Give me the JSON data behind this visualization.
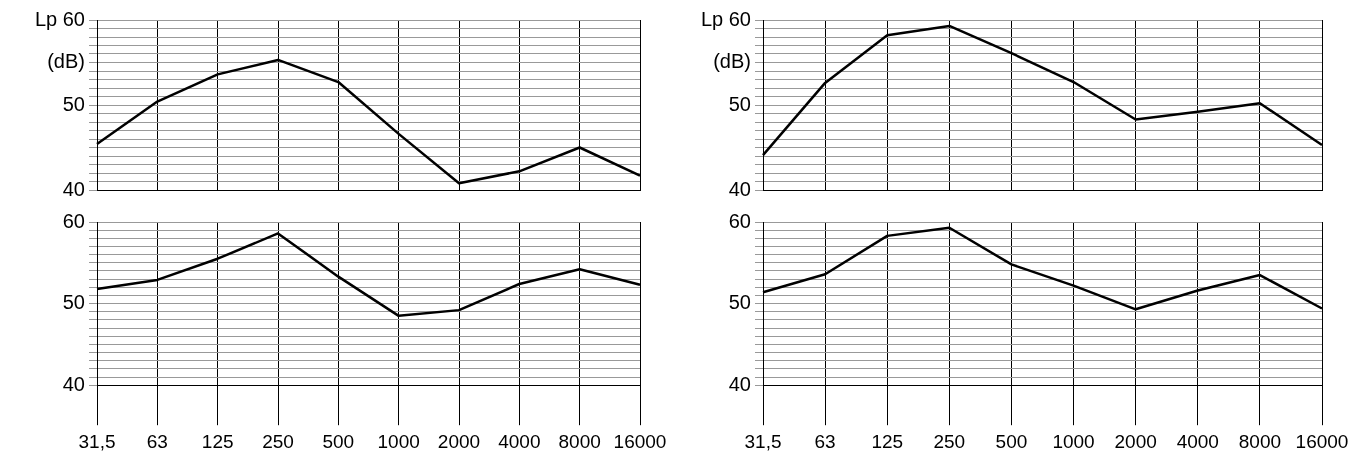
{
  "chart_data": [
    {
      "type": "line",
      "ylabel": "(dB)",
      "categories": [
        "31,5",
        "63",
        "125",
        "250",
        "500",
        "1000",
        "2000",
        "4000",
        "8000",
        "16000"
      ],
      "series": [
        {
          "color": "#000000",
          "values": [
            45.4,
            50.4,
            53.6,
            55.3,
            52.7,
            46.6,
            40.8,
            42.2,
            45.0,
            41.7
          ]
        }
      ],
      "ylim": [
        40,
        60
      ],
      "yticks": [
        40,
        {
          "value": 41,
          "label": null
        },
        {
          "value": 42,
          "label": null
        },
        {
          "value": 43,
          "label": null
        },
        {
          "value": 44,
          "label": null
        },
        {
          "value": 45,
          "label": null
        },
        {
          "value": 46,
          "label": null
        },
        {
          "value": 47,
          "label": null
        },
        {
          "value": 48,
          "label": null
        },
        {
          "value": 49,
          "label": null
        },
        50,
        {
          "value": 51,
          "label": null
        },
        {
          "value": 52,
          "label": null
        },
        {
          "value": 53,
          "label": null
        },
        {
          "value": 54,
          "label": null
        },
        {
          "value": 55,
          "label": null
        },
        {
          "value": 56,
          "label": null
        },
        {
          "value": 57,
          "label": null
        },
        {
          "value": 58,
          "label": null
        },
        {
          "value": 59,
          "label": null
        },
        {
          "value": 60,
          "label": "Lp 60"
        }
      ],
      "grid": true,
      "tick_labels": "y"
    },
    {
      "type": "line",
      "ylabel": "(dB)",
      "categories": [
        "31,5",
        "63",
        "125",
        "250",
        "500",
        "1000",
        "2000",
        "4000",
        "8000",
        "16000"
      ],
      "series": [
        {
          "color": "#000000",
          "values": [
            44.1,
            52.6,
            58.2,
            59.3,
            56.1,
            52.7,
            48.3,
            49.2,
            50.2,
            45.3
          ]
        }
      ],
      "ylim": [
        40,
        60
      ],
      "yticks": [
        40,
        {
          "value": 41,
          "label": null
        },
        {
          "value": 42,
          "label": null
        },
        {
          "value": 43,
          "label": null
        },
        {
          "value": 44,
          "label": null
        },
        {
          "value": 45,
          "label": null
        },
        {
          "value": 46,
          "label": null
        },
        {
          "value": 47,
          "label": null
        },
        {
          "value": 48,
          "label": null
        },
        {
          "value": 49,
          "label": null
        },
        50,
        {
          "value": 51,
          "label": null
        },
        {
          "value": 52,
          "label": null
        },
        {
          "value": 53,
          "label": null
        },
        {
          "value": 54,
          "label": null
        },
        {
          "value": 55,
          "label": null
        },
        {
          "value": 56,
          "label": null
        },
        {
          "value": 57,
          "label": null
        },
        {
          "value": 58,
          "label": null
        },
        {
          "value": 59,
          "label": null
        },
        {
          "value": 60,
          "label": "Lp 60"
        }
      ],
      "grid": true,
      "tick_labels": "y"
    },
    {
      "type": "line",
      "categories": [
        "31,5",
        "63",
        "125",
        "250",
        "500",
        "1000",
        "2000",
        "4000",
        "8000",
        "16000"
      ],
      "series": [
        {
          "color": "#000000",
          "values": [
            51.8,
            52.9,
            55.5,
            58.6,
            53.3,
            48.5,
            49.2,
            52.4,
            54.2,
            52.3
          ]
        }
      ],
      "ylim": [
        40,
        60
      ],
      "yticks": [
        40,
        {
          "value": 41,
          "label": null
        },
        {
          "value": 42,
          "label": null
        },
        {
          "value": 43,
          "label": null
        },
        {
          "value": 44,
          "label": null
        },
        {
          "value": 45,
          "label": null
        },
        {
          "value": 46,
          "label": null
        },
        {
          "value": 47,
          "label": null
        },
        {
          "value": 48,
          "label": null
        },
        {
          "value": 49,
          "label": null
        },
        50,
        {
          "value": 51,
          "label": null
        },
        {
          "value": 52,
          "label": null
        },
        {
          "value": 53,
          "label": null
        },
        {
          "value": 54,
          "label": null
        },
        {
          "value": 55,
          "label": null
        },
        {
          "value": 56,
          "label": null
        },
        {
          "value": 57,
          "label": null
        },
        {
          "value": 58,
          "label": null
        },
        {
          "value": 59,
          "label": null
        },
        60
      ],
      "grid": true
    },
    {
      "type": "line",
      "categories": [
        "31,5",
        "63",
        "125",
        "250",
        "500",
        "1000",
        "2000",
        "4000",
        "8000",
        "16000"
      ],
      "series": [
        {
          "color": "#000000",
          "values": [
            51.4,
            53.6,
            58.3,
            59.3,
            54.8,
            52.2,
            49.3,
            51.6,
            53.5,
            49.4
          ]
        }
      ],
      "ylim": [
        40,
        60
      ],
      "yticks": [
        40,
        {
          "value": 41,
          "label": null
        },
        {
          "value": 42,
          "label": null
        },
        {
          "value": 43,
          "label": null
        },
        {
          "value": 44,
          "label": null
        },
        {
          "value": 45,
          "label": null
        },
        {
          "value": 46,
          "label": null
        },
        {
          "value": 47,
          "label": null
        },
        {
          "value": 48,
          "label": null
        },
        {
          "value": 49,
          "label": null
        },
        50,
        {
          "value": 51,
          "label": null
        },
        {
          "value": 52,
          "label": null
        },
        {
          "value": 53,
          "label": null
        },
        {
          "value": 54,
          "label": null
        },
        {
          "value": 55,
          "label": null
        },
        {
          "value": 56,
          "label": null
        },
        {
          "value": 57,
          "label": null
        },
        {
          "value": 58,
          "label": null
        },
        {
          "value": 59,
          "label": null
        },
        60
      ],
      "grid": true
    }
  ]
}
